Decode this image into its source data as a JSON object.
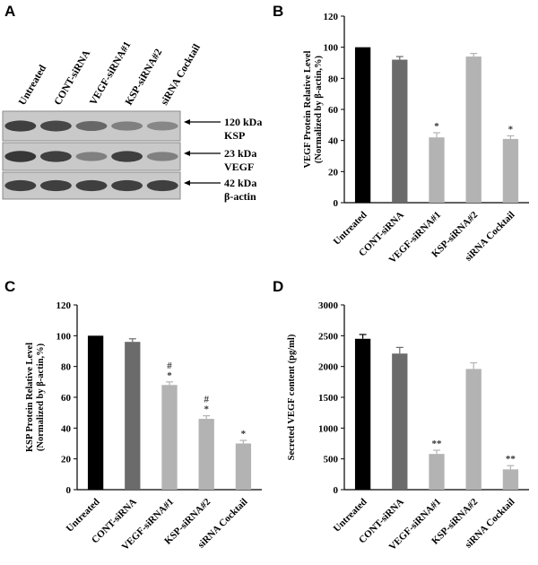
{
  "panels": {
    "A": "A",
    "B": "B",
    "C": "C",
    "D": "D"
  },
  "blot": {
    "lanes": [
      "Untreated",
      "CONT-siRNA",
      "VEGF-siRNA#1",
      "KSP-siRNA#2",
      "siRNA Cocktail"
    ],
    "bands": [
      {
        "size": "120 kDa",
        "name": "KSP",
        "intensity": [
          0.85,
          0.8,
          0.6,
          0.45,
          0.4
        ]
      },
      {
        "size": "23 kDa",
        "name": "VEGF",
        "intensity": [
          0.9,
          0.85,
          0.45,
          0.85,
          0.45
        ]
      },
      {
        "size": "42 kDa",
        "name": "β-actin",
        "intensity": [
          0.85,
          0.85,
          0.85,
          0.85,
          0.85
        ]
      }
    ]
  },
  "chart_data": [
    {
      "panel": "B",
      "type": "bar",
      "categories": [
        "Untreated",
        "CONT-siRNA",
        "VEGF-siRNA#1",
        "KSP-siRNA#2",
        "siRNA Cocktail"
      ],
      "values": [
        100,
        92,
        42,
        94,
        41
      ],
      "errors": [
        0,
        2,
        3,
        2,
        2
      ],
      "annotations": [
        "",
        "",
        "*",
        "",
        "*"
      ],
      "bar_colors": [
        "#000000",
        "#6b6b6b",
        "#b3b3b3",
        "#b3b3b3",
        "#b3b3b3"
      ],
      "ylabel_lines": [
        "VEGF Protein Relative Level",
        "(Normalized by β-actin,%)"
      ],
      "ylim": [
        0,
        120
      ],
      "yticks": [
        0,
        20,
        40,
        60,
        80,
        100,
        120
      ]
    },
    {
      "panel": "C",
      "type": "bar",
      "categories": [
        "Untreated",
        "CONT-siRNA",
        "VEGF-siRNA#1",
        "KSP-siRNA#2",
        "siRNA Cocktail"
      ],
      "values": [
        100,
        96,
        68,
        46,
        30
      ],
      "errors": [
        0,
        2,
        2,
        2,
        2
      ],
      "annotations": [
        "",
        "",
        "#\n*",
        "#\n*",
        "*"
      ],
      "bar_colors": [
        "#000000",
        "#6b6b6b",
        "#b3b3b3",
        "#b3b3b3",
        "#b3b3b3"
      ],
      "ylabel_lines": [
        "KSP Protein Relative Level",
        "(Normalized by β-actin,%)"
      ],
      "ylim": [
        0,
        120
      ],
      "yticks": [
        0,
        20,
        40,
        60,
        80,
        100,
        120
      ]
    },
    {
      "panel": "D",
      "type": "bar",
      "categories": [
        "Untreated",
        "CONT-siRNA",
        "VEGF-siRNA#1",
        "KSP-siRNA#2",
        "siRNA Cocktail"
      ],
      "values": [
        2450,
        2210,
        580,
        1960,
        330
      ],
      "errors": [
        70,
        100,
        60,
        100,
        60
      ],
      "annotations": [
        "",
        "",
        "**",
        "",
        "**"
      ],
      "bar_colors": [
        "#000000",
        "#6b6b6b",
        "#b3b3b3",
        "#b3b3b3",
        "#b3b3b3"
      ],
      "ylabel_lines": [
        "Secreted VEGF content (pg/ml)"
      ],
      "ylim": [
        0,
        3000
      ],
      "yticks": [
        0,
        500,
        1000,
        1500,
        2000,
        2500,
        3000
      ]
    }
  ]
}
